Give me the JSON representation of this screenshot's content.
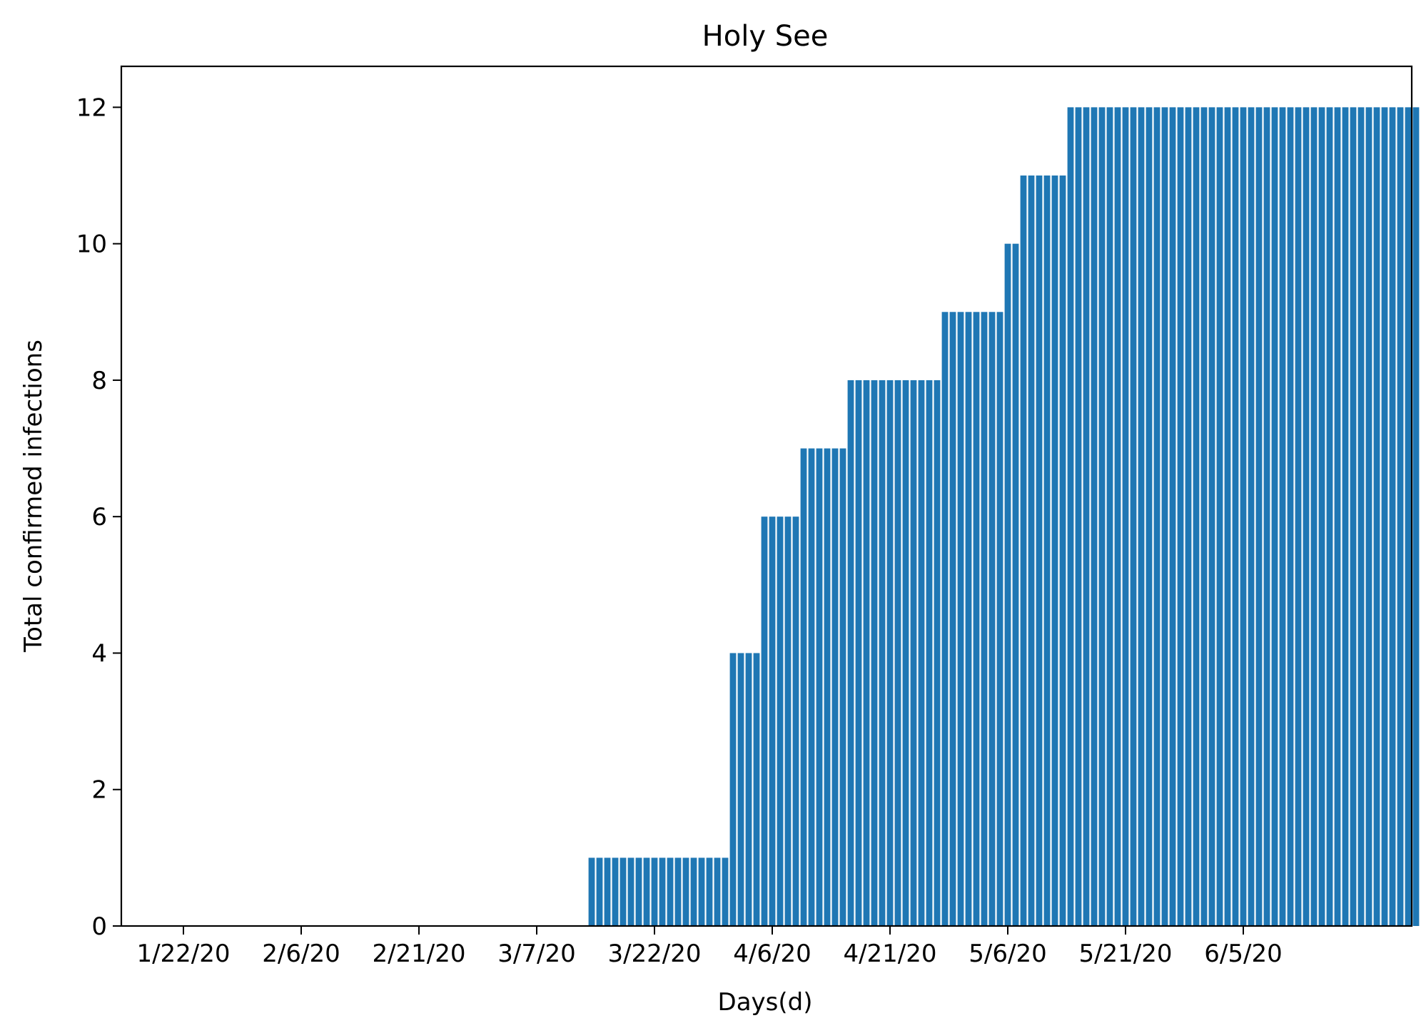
{
  "chart_data": {
    "type": "bar",
    "title": "Holy See",
    "xlabel": "Days(d)",
    "ylabel": "Total confirmed infections",
    "x_start": "1/22/20",
    "x_end": "6/23/20",
    "xticks": [
      "1/22/20",
      "2/6/20",
      "2/21/20",
      "3/7/20",
      "3/22/20",
      "4/6/20",
      "4/21/20",
      "5/6/20",
      "5/21/20",
      "6/5/20"
    ],
    "yticks": [
      0,
      2,
      4,
      6,
      8,
      10,
      12
    ],
    "ylim": [
      0,
      12.6
    ],
    "grid": false,
    "legend": "none",
    "color": "#1f77b4",
    "values": [
      0,
      0,
      0,
      0,
      0,
      0,
      0,
      0,
      0,
      0,
      0,
      0,
      0,
      0,
      0,
      0,
      0,
      0,
      0,
      0,
      0,
      0,
      0,
      0,
      0,
      0,
      0,
      0,
      0,
      0,
      0,
      0,
      0,
      0,
      0,
      0,
      0,
      0,
      0,
      0,
      0,
      0,
      0,
      0,
      0,
      0,
      0,
      0,
      0,
      0,
      0,
      0,
      1,
      1,
      1,
      1,
      1,
      1,
      1,
      1,
      1,
      1,
      1,
      1,
      1,
      1,
      1,
      1,
      1,
      1,
      4,
      4,
      4,
      4,
      6,
      6,
      6,
      6,
      6,
      7,
      7,
      7,
      7,
      7,
      7,
      8,
      8,
      8,
      8,
      8,
      8,
      8,
      8,
      8,
      8,
      8,
      8,
      9,
      9,
      9,
      9,
      9,
      9,
      9,
      9,
      10,
      10,
      11,
      11,
      11,
      11,
      11,
      11,
      12,
      12,
      12,
      12,
      12,
      12,
      12,
      12,
      12,
      12,
      12,
      12,
      12,
      12,
      12,
      12,
      12,
      12,
      12,
      12,
      12,
      12,
      12,
      12,
      12,
      12,
      12,
      12,
      12,
      12,
      12,
      12,
      12,
      12,
      12,
      12,
      12,
      12,
      12,
      12,
      12,
      12,
      12,
      12,
      12
    ]
  }
}
